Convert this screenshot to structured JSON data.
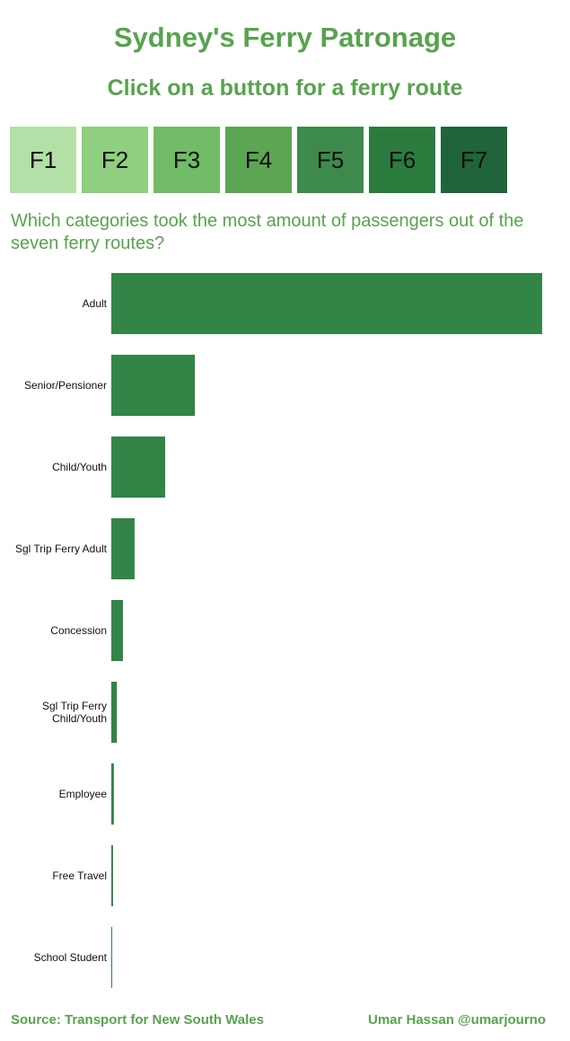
{
  "header": {
    "title": "Sydney's Ferry Patronage",
    "subtitle": "Click on a button for a ferry route"
  },
  "routes": [
    {
      "label": "F1",
      "color": "#b3e0a6"
    },
    {
      "label": "F2",
      "color": "#8fcf7f"
    },
    {
      "label": "F3",
      "color": "#72bb67"
    },
    {
      "label": "F4",
      "color": "#5ba553"
    },
    {
      "label": "F5",
      "color": "#3e8a4c"
    },
    {
      "label": "F6",
      "color": "#2b7b3f"
    },
    {
      "label": "F7",
      "color": "#1f643a"
    }
  ],
  "question": "Which categories took the most amount of passengers out of the seven ferry routes?",
  "chart_data": {
    "type": "bar",
    "orientation": "horizontal",
    "title": "",
    "xlabel": "",
    "ylabel": "",
    "bar_color": "#338447",
    "categories": [
      [
        "Adult"
      ],
      [
        "Senior/Pensioner"
      ],
      [
        "Child/Youth"
      ],
      [
        "Sgl Trip Ferry Adult"
      ],
      [
        "Concession"
      ],
      [
        "Sgl Trip Ferry",
        "Child/Youth"
      ],
      [
        "Employee"
      ],
      [
        "Free Travel"
      ],
      [
        "School Student"
      ]
    ],
    "values": [
      100,
      19.4,
      12.5,
      5.4,
      2.7,
      1.3,
      0.6,
      0.4,
      0.2
    ],
    "xlim": [
      0,
      100
    ],
    "grid": false,
    "axis_ticks": false,
    "legend": "none"
  },
  "footer": {
    "source": "Source: Transport for New South Wales",
    "author": "Umar Hassan @umarjourno"
  }
}
